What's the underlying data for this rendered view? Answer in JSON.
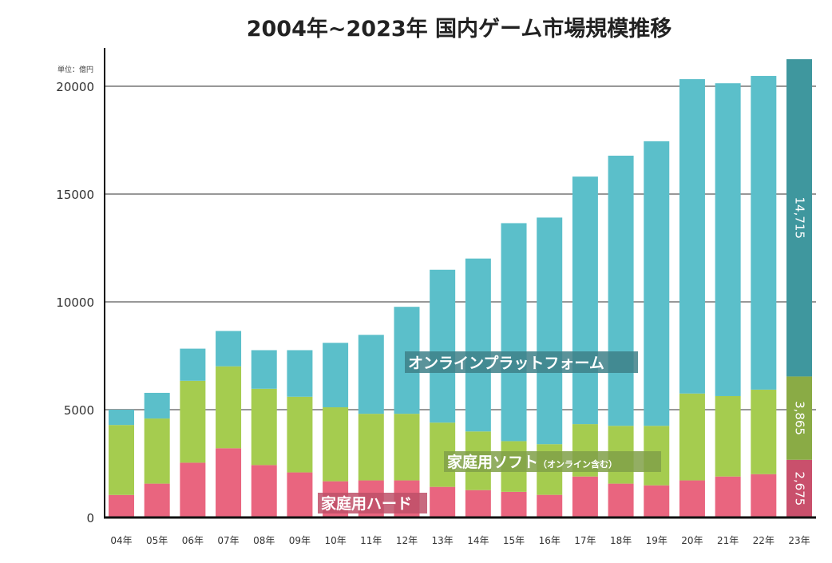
{
  "chart_data": {
    "type": "stacked-bar",
    "title": "2004年~2023年 国内ゲーム市場規模推移",
    "unit_label": "単位：億円",
    "xlabel": "",
    "ylabel": "",
    "ylim": [
      0,
      21500
    ],
    "yticks": [
      0,
      5000,
      10000,
      15000,
      20000
    ],
    "grid": true,
    "categories": [
      "04年",
      "05年",
      "06年",
      "07年",
      "08年",
      "09年",
      "10年",
      "11年",
      "12年",
      "13年",
      "14年",
      "15年",
      "16年",
      "17年",
      "18年",
      "19年",
      "20年",
      "21年",
      "22年",
      "23年"
    ],
    "series": [
      {
        "name": "家庭用ハード",
        "color": "#e9657f",
        "highlight_color": "#c9506c",
        "values": [
          1045,
          1570,
          2540,
          3210,
          2430,
          2090,
          1680,
          1720,
          1720,
          1420,
          1270,
          1190,
          1050,
          1900,
          1570,
          1490,
          1720,
          1900,
          2010,
          2675
        ]
      },
      {
        "name": "家庭用ソフト",
        "name_note": "（オンライン含む）",
        "color": "#a5cc4f",
        "highlight_color": "#8aab45",
        "values": [
          3245,
          3020,
          3800,
          3800,
          3540,
          3510,
          3430,
          3090,
          3090,
          2980,
          2720,
          2350,
          2350,
          2430,
          2680,
          2760,
          4030,
          3730,
          3920,
          3865
        ]
      },
      {
        "name": "オンラインプラットフォーム",
        "color": "#5bbfca",
        "highlight_color": "#3f979e",
        "values": [
          710,
          1190,
          1490,
          1640,
          1790,
          2160,
          2990,
          3660,
          4960,
          7090,
          8020,
          10110,
          10510,
          11480,
          12530,
          13200,
          14580,
          14510,
          14550,
          14715
        ]
      }
    ],
    "data_labels": {
      "23年": {
        "online": "14,715",
        "soft": "3,865",
        "hard": "2,675"
      }
    }
  }
}
